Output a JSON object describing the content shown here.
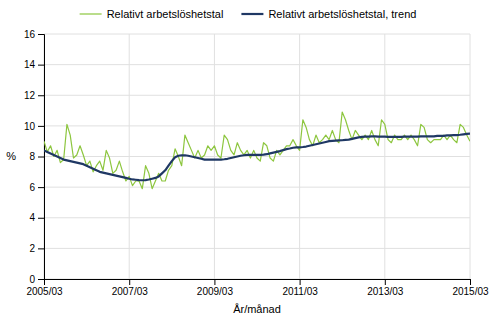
{
  "chart_data": {
    "type": "line",
    "x_label": "År/månad",
    "y_label": "%",
    "grid": true,
    "xlim": [
      2005.1667,
      2015.167
    ],
    "xticks": [
      {
        "value": 2005.167,
        "label": "2005/03"
      },
      {
        "value": 2007.167,
        "label": "2007/03"
      },
      {
        "value": 2009.167,
        "label": "2009/03"
      },
      {
        "value": 2011.167,
        "label": "2011/03"
      },
      {
        "value": 2013.167,
        "label": "2013/03"
      },
      {
        "value": 2015.167,
        "label": "2015/03"
      }
    ],
    "ylim": [
      0,
      16
    ],
    "yticks": [
      0,
      2,
      4,
      6,
      8,
      10,
      12,
      14,
      16
    ],
    "x": [
      2005.1667,
      2005.2436,
      2005.3205,
      2005.3974,
      2005.4744,
      2005.5513,
      2005.6282,
      2005.7051,
      2005.7821,
      2005.859,
      2005.9359,
      2006.0128,
      2006.0897,
      2006.1667,
      2006.2436,
      2006.3205,
      2006.3974,
      2006.4744,
      2006.5513,
      2006.6282,
      2006.7051,
      2006.7821,
      2006.859,
      2006.9359,
      2007.0128,
      2007.0897,
      2007.1667,
      2007.2436,
      2007.3205,
      2007.3974,
      2007.4744,
      2007.5513,
      2007.6282,
      2007.7051,
      2007.7821,
      2007.859,
      2007.9359,
      2008.0128,
      2008.0897,
      2008.1667,
      2008.2436,
      2008.3205,
      2008.3974,
      2008.4744,
      2008.5513,
      2008.6282,
      2008.7051,
      2008.7821,
      2008.859,
      2008.9359,
      2009.0128,
      2009.0897,
      2009.1667,
      2009.2436,
      2009.3205,
      2009.3974,
      2009.4744,
      2009.5513,
      2009.6282,
      2009.7051,
      2009.7821,
      2009.859,
      2009.9359,
      2010.0128,
      2010.0897,
      2010.1667,
      2010.2436,
      2010.3205,
      2010.3974,
      2010.4744,
      2010.5513,
      2010.6282,
      2010.7051,
      2010.7821,
      2010.859,
      2010.9359,
      2011.0128,
      2011.0897,
      2011.1667,
      2011.2436,
      2011.3205,
      2011.3974,
      2011.4744,
      2011.5513,
      2011.6282,
      2011.7051,
      2011.7821,
      2011.859,
      2011.9359,
      2012.0128,
      2012.0897,
      2012.1667,
      2012.2436,
      2012.3205,
      2012.3974,
      2012.4744,
      2012.5513,
      2012.6282,
      2012.7051,
      2012.7821,
      2012.859,
      2012.9359,
      2013.0128,
      2013.0897,
      2013.1667,
      2013.2436,
      2013.3205,
      2013.3974,
      2013.4744,
      2013.5513,
      2013.6282,
      2013.7051,
      2013.7821,
      2013.859,
      2013.9359,
      2014.0128,
      2014.0897,
      2014.1667,
      2014.2436,
      2014.3205,
      2014.3974,
      2014.4744,
      2014.5513,
      2014.6282,
      2014.7051,
      2014.7821,
      2014.859,
      2014.9359,
      2015.0128,
      2015.0897,
      2015.1667
    ],
    "series": [
      {
        "name": "Relativt arbetslöshetstal",
        "color": "#8dc63f",
        "values": [
          9.0,
          8.3,
          8.7,
          8.0,
          8.4,
          7.6,
          7.8,
          10.1,
          9.4,
          7.9,
          8.1,
          8.7,
          8.1,
          7.4,
          7.7,
          7.0,
          7.4,
          7.7,
          7.1,
          8.4,
          7.9,
          6.9,
          7.1,
          7.7,
          7.0,
          6.4,
          6.7,
          6.1,
          6.4,
          6.4,
          5.9,
          7.4,
          6.9,
          5.9,
          6.4,
          6.9,
          6.4,
          6.4,
          7.1,
          7.4,
          8.5,
          8.0,
          7.4,
          9.4,
          8.9,
          8.4,
          7.9,
          8.4,
          7.9,
          8.1,
          8.7,
          8.4,
          8.7,
          8.1,
          7.9,
          9.4,
          9.1,
          8.4,
          8.1,
          8.9,
          8.4,
          8.1,
          8.4,
          7.9,
          8.4,
          7.9,
          7.7,
          8.9,
          8.7,
          7.9,
          7.7,
          8.4,
          8.1,
          8.4,
          8.7,
          8.7,
          9.1,
          8.7,
          8.4,
          10.4,
          9.9,
          9.1,
          8.7,
          9.4,
          8.9,
          9.1,
          9.4,
          9.1,
          9.7,
          9.1,
          8.9,
          10.9,
          10.4,
          9.7,
          9.1,
          9.7,
          9.4,
          9.1,
          9.4,
          9.1,
          9.7,
          9.1,
          8.7,
          10.4,
          10.1,
          9.1,
          8.9,
          9.4,
          9.1,
          9.1,
          9.4,
          9.1,
          9.4,
          9.1,
          8.7,
          10.1,
          9.9,
          9.1,
          8.9,
          9.1,
          9.1,
          9.1,
          9.4,
          9.1,
          9.4,
          9.1,
          8.9,
          10.1,
          9.9,
          9.4,
          9.0
        ]
      },
      {
        "name": "Relativt arbetslöshetstal, trend",
        "color": "#1f3864",
        "values": [
          8.4,
          8.3,
          8.2,
          8.1,
          8.0,
          7.9,
          7.8,
          7.75,
          7.7,
          7.65,
          7.6,
          7.55,
          7.5,
          7.4,
          7.3,
          7.2,
          7.1,
          7.0,
          6.95,
          6.9,
          6.85,
          6.8,
          6.75,
          6.7,
          6.65,
          6.6,
          6.55,
          6.5,
          6.48,
          6.46,
          6.45,
          6.46,
          6.5,
          6.55,
          6.6,
          6.7,
          6.9,
          7.1,
          7.4,
          7.7,
          7.95,
          8.05,
          8.08,
          8.08,
          8.05,
          8.0,
          7.95,
          7.9,
          7.85,
          7.8,
          7.8,
          7.8,
          7.8,
          7.8,
          7.8,
          7.82,
          7.85,
          7.9,
          7.95,
          8.0,
          8.05,
          8.08,
          8.1,
          8.1,
          8.1,
          8.1,
          8.1,
          8.12,
          8.15,
          8.2,
          8.25,
          8.3,
          8.35,
          8.42,
          8.48,
          8.52,
          8.57,
          8.6,
          8.6,
          8.62,
          8.65,
          8.7,
          8.75,
          8.8,
          8.85,
          8.9,
          8.95,
          9.0,
          9.02,
          9.04,
          9.05,
          9.06,
          9.08,
          9.1,
          9.15,
          9.2,
          9.25,
          9.28,
          9.3,
          9.3,
          9.32,
          9.32,
          9.3,
          9.3,
          9.3,
          9.28,
          9.28,
          9.28,
          9.28,
          9.28,
          9.3,
          9.3,
          9.3,
          9.3,
          9.3,
          9.32,
          9.32,
          9.32,
          9.32,
          9.32,
          9.35,
          9.35,
          9.35,
          9.38,
          9.38,
          9.4,
          9.4,
          9.42,
          9.45,
          9.48,
          9.5
        ]
      }
    ]
  }
}
